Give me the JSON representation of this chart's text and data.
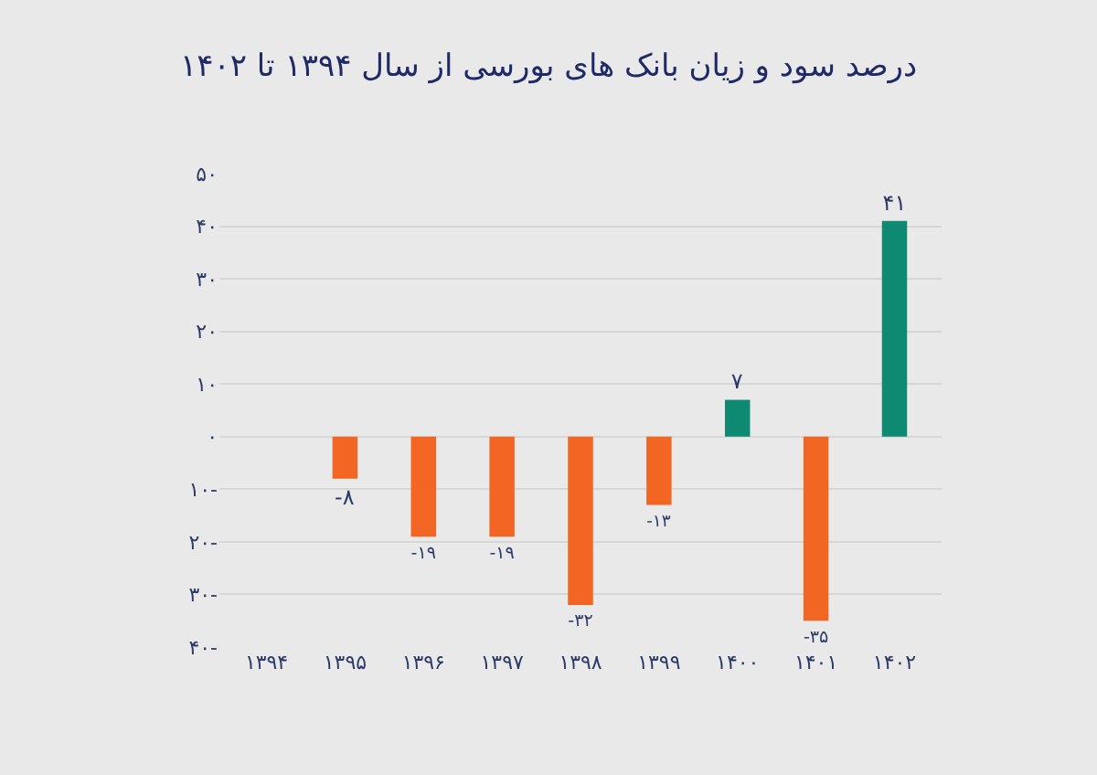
{
  "chart_data": {
    "type": "bar",
    "title": "درصد سود و زیان بانک های بورسی از سال ۱۳۹۴ تا ۱۴۰۲",
    "categories": [
      "۱۳۹۴",
      "۱۳۹۵",
      "۱۳۹۶",
      "۱۳۹۷",
      "۱۳۹۸",
      "۱۳۹۹",
      "۱۴۰۰",
      "۱۴۰۱",
      "۱۴۰۲"
    ],
    "values": [
      0,
      -8,
      -19,
      -19,
      -32,
      -13,
      7,
      -35,
      41
    ],
    "value_labels": [
      null,
      "-۸",
      "-۱۹",
      "-۱۹",
      "-۳۲",
      "-۱۳",
      "۷",
      "-۳۵",
      "۴۱"
    ],
    "colors": [
      "#f26522",
      "#f26522",
      "#f26522",
      "#f26522",
      "#f26522",
      "#f26522",
      "#0e8a72",
      "#f26522",
      "#0e8a72"
    ],
    "ylim": [
      -40,
      50
    ],
    "yticks": [
      {
        "value": -40,
        "label": "۴۰-"
      },
      {
        "value": -30,
        "label": "۳۰-"
      },
      {
        "value": -20,
        "label": "۲۰-"
      },
      {
        "value": -10,
        "label": "۱۰-"
      },
      {
        "value": 0,
        "label": "۰"
      },
      {
        "value": 10,
        "label": "۱۰"
      },
      {
        "value": 20,
        "label": "۲۰"
      },
      {
        "value": 30,
        "label": "۳۰"
      },
      {
        "value": 40,
        "label": "۴۰"
      },
      {
        "value": 50,
        "label": "۵۰"
      }
    ],
    "grid": "y"
  }
}
